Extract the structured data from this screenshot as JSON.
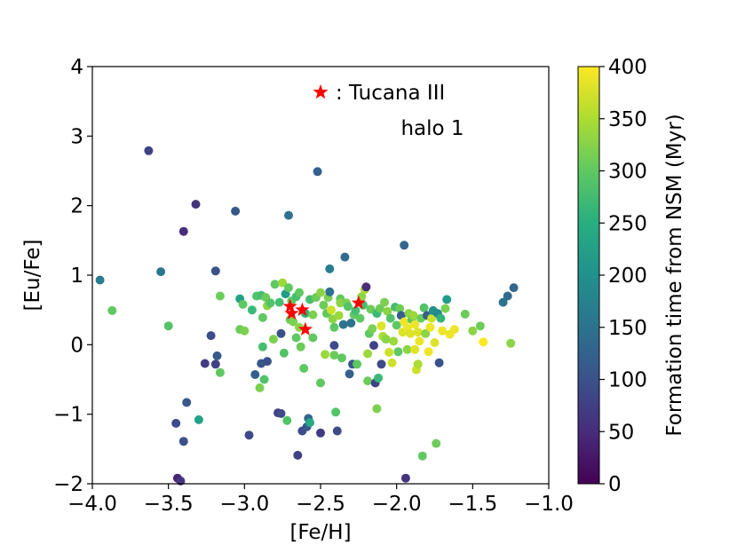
{
  "chart_data": {
    "type": "scatter",
    "xlabel": "[Fe/H]",
    "ylabel": "[Eu/Fe]",
    "xlim": [
      -4.0,
      -1.0
    ],
    "ylim": [
      -2,
      4
    ],
    "xticks": [
      "−4.0",
      "−3.5",
      "−3.0",
      "−2.5",
      "−2.0",
      "−1.5",
      "−1.0"
    ],
    "yticks": [
      "−2",
      "−1",
      "0",
      "1",
      "2",
      "3",
      "4"
    ],
    "grid": false,
    "colormap": "viridis",
    "legend": {
      "label": ": Tucana III",
      "marker": "star",
      "color": "#ff0000",
      "placement": "top-center"
    },
    "annotation": "halo 1",
    "colorbar": {
      "label": "Formation time from NSM (Myr)",
      "range": [
        0,
        400
      ],
      "ticks": [
        "0",
        "50",
        "100",
        "150",
        "200",
        "250",
        "300",
        "350",
        "400"
      ]
    },
    "tucana_iii": [
      {
        "x": -2.7,
        "y": 0.55
      },
      {
        "x": -2.69,
        "y": 0.45
      },
      {
        "x": -2.62,
        "y": 0.5
      },
      {
        "x": -2.6,
        "y": 0.22
      },
      {
        "x": -2.25,
        "y": 0.6
      }
    ],
    "points": [
      {
        "x": -3.95,
        "y": 0.93,
        "c": 170
      },
      {
        "x": -3.87,
        "y": 0.49,
        "c": 300
      },
      {
        "x": -3.63,
        "y": 2.79,
        "c": 80
      },
      {
        "x": -3.55,
        "y": 1.05,
        "c": 160
      },
      {
        "x": -3.5,
        "y": 0.27,
        "c": 290
      },
      {
        "x": -3.45,
        "y": -1.13,
        "c": 90
      },
      {
        "x": -3.44,
        "y": -1.92,
        "c": 40
      },
      {
        "x": -3.42,
        "y": -1.96,
        "c": 60
      },
      {
        "x": -3.4,
        "y": -1.39,
        "c": 100
      },
      {
        "x": -3.4,
        "y": 1.63,
        "c": 50
      },
      {
        "x": -3.38,
        "y": -0.83,
        "c": 110
      },
      {
        "x": -3.32,
        "y": 2.02,
        "c": 60
      },
      {
        "x": -3.3,
        "y": -1.08,
        "c": 230
      },
      {
        "x": -3.26,
        "y": -0.27,
        "c": 70
      },
      {
        "x": -3.22,
        "y": 0.13,
        "c": 90
      },
      {
        "x": -3.19,
        "y": 1.06,
        "c": 100
      },
      {
        "x": -3.19,
        "y": -0.28,
        "c": 80
      },
      {
        "x": -3.18,
        "y": -0.16,
        "c": 110
      },
      {
        "x": -3.16,
        "y": 0.7,
        "c": 310
      },
      {
        "x": -3.16,
        "y": -0.4,
        "c": 300
      },
      {
        "x": -3.06,
        "y": 1.92,
        "c": 110
      },
      {
        "x": -3.03,
        "y": 0.66,
        "c": 230
      },
      {
        "x": -3.03,
        "y": 0.22,
        "c": 310
      },
      {
        "x": -3.01,
        "y": 0.58,
        "c": 300
      },
      {
        "x": -3.0,
        "y": 0.2,
        "c": 320
      },
      {
        "x": -2.97,
        "y": -1.3,
        "c": 90
      },
      {
        "x": -2.95,
        "y": 0.5,
        "c": 270
      },
      {
        "x": -2.93,
        "y": -0.43,
        "c": 120
      },
      {
        "x": -2.92,
        "y": 0.7,
        "c": 290
      },
      {
        "x": -2.9,
        "y": -0.62,
        "c": 320
      },
      {
        "x": -2.89,
        "y": 0.71,
        "c": 280
      },
      {
        "x": -2.89,
        "y": -0.27,
        "c": 110
      },
      {
        "x": -2.88,
        "y": 0.39,
        "c": 300
      },
      {
        "x": -2.88,
        "y": -0.03,
        "c": 280
      },
      {
        "x": -2.87,
        "y": -0.5,
        "c": 290
      },
      {
        "x": -2.86,
        "y": 0.68,
        "c": 310
      },
      {
        "x": -2.85,
        "y": -0.24,
        "c": 100
      },
      {
        "x": -2.85,
        "y": 0.56,
        "c": 330
      },
      {
        "x": -2.83,
        "y": 0.6,
        "c": 290
      },
      {
        "x": -2.81,
        "y": 0.08,
        "c": 320
      },
      {
        "x": -2.8,
        "y": 0.87,
        "c": 300
      },
      {
        "x": -2.78,
        "y": -0.98,
        "c": 80
      },
      {
        "x": -2.77,
        "y": 0.61,
        "c": 280
      },
      {
        "x": -2.76,
        "y": 0.16,
        "c": 100
      },
      {
        "x": -2.76,
        "y": -0.99,
        "c": 90
      },
      {
        "x": -2.75,
        "y": 0.89,
        "c": 340
      },
      {
        "x": -2.74,
        "y": -0.12,
        "c": 290
      },
      {
        "x": -2.73,
        "y": 0.73,
        "c": 220
      },
      {
        "x": -2.72,
        "y": -1.09,
        "c": 290
      },
      {
        "x": -2.71,
        "y": 0.82,
        "c": 300
      },
      {
        "x": -2.71,
        "y": 1.86,
        "c": 150
      },
      {
        "x": -2.7,
        "y": 0.36,
        "c": 310
      },
      {
        "x": -2.69,
        "y": 0.63,
        "c": 300
      },
      {
        "x": -2.68,
        "y": 0.33,
        "c": 320
      },
      {
        "x": -2.66,
        "y": 0.1,
        "c": 300
      },
      {
        "x": -2.66,
        "y": 0.69,
        "c": 280
      },
      {
        "x": -2.65,
        "y": -1.59,
        "c": 80
      },
      {
        "x": -2.64,
        "y": 0.25,
        "c": 330
      },
      {
        "x": -2.64,
        "y": 0.75,
        "c": 300
      },
      {
        "x": -2.63,
        "y": -0.03,
        "c": 310
      },
      {
        "x": -2.62,
        "y": -1.24,
        "c": 90
      },
      {
        "x": -2.61,
        "y": -0.34,
        "c": 300
      },
      {
        "x": -2.6,
        "y": 0.45,
        "c": 260
      },
      {
        "x": -2.59,
        "y": -1.18,
        "c": 110
      },
      {
        "x": -2.58,
        "y": -1.06,
        "c": 130
      },
      {
        "x": -2.57,
        "y": -1.12,
        "c": 240
      },
      {
        "x": -2.57,
        "y": 0.65,
        "c": 280
      },
      {
        "x": -2.55,
        "y": 0.1,
        "c": 300
      },
      {
        "x": -2.55,
        "y": 0.43,
        "c": 320
      },
      {
        "x": -2.53,
        "y": 0.68,
        "c": 310
      },
      {
        "x": -2.52,
        "y": 2.49,
        "c": 120
      },
      {
        "x": -2.5,
        "y": -0.55,
        "c": 300
      },
      {
        "x": -2.5,
        "y": -1.27,
        "c": 70
      },
      {
        "x": -2.5,
        "y": 0.75,
        "c": 330
      },
      {
        "x": -2.48,
        "y": 0.57,
        "c": 310
      },
      {
        "x": -2.47,
        "y": -0.14,
        "c": 340
      },
      {
        "x": -2.46,
        "y": 0.45,
        "c": 300
      },
      {
        "x": -2.45,
        "y": 0.68,
        "c": 320
      },
      {
        "x": -2.44,
        "y": 0.76,
        "c": 150
      },
      {
        "x": -2.44,
        "y": 1.09,
        "c": 170
      },
      {
        "x": -2.43,
        "y": 0.5,
        "c": 370
      },
      {
        "x": -2.42,
        "y": 0.37,
        "c": 330
      },
      {
        "x": -2.41,
        "y": 0.25,
        "c": 300
      },
      {
        "x": -2.41,
        "y": -0.01,
        "c": 90
      },
      {
        "x": -2.41,
        "y": -0.15,
        "c": 310
      },
      {
        "x": -2.4,
        "y": -0.97,
        "c": 290
      },
      {
        "x": -2.39,
        "y": -1.24,
        "c": 90
      },
      {
        "x": -2.38,
        "y": 0.42,
        "c": 340
      },
      {
        "x": -2.37,
        "y": 0.66,
        "c": 300
      },
      {
        "x": -2.37,
        "y": 0.6,
        "c": 330
      },
      {
        "x": -2.36,
        "y": -0.19,
        "c": 300
      },
      {
        "x": -2.35,
        "y": 0.29,
        "c": 150
      },
      {
        "x": -2.34,
        "y": 1.26,
        "c": 140
      },
      {
        "x": -2.33,
        "y": 0.6,
        "c": 320
      },
      {
        "x": -2.32,
        "y": 0.55,
        "c": 290
      },
      {
        "x": -2.31,
        "y": -0.42,
        "c": 120
      },
      {
        "x": -2.3,
        "y": 0.31,
        "c": 150
      },
      {
        "x": -2.29,
        "y": -0.28,
        "c": 110
      },
      {
        "x": -2.28,
        "y": 0.43,
        "c": 300
      },
      {
        "x": -2.27,
        "y": 0.49,
        "c": 280
      },
      {
        "x": -2.26,
        "y": -0.28,
        "c": 300
      },
      {
        "x": -2.24,
        "y": 0.38,
        "c": 300
      },
      {
        "x": -2.23,
        "y": 0.69,
        "c": 330
      },
      {
        "x": -2.22,
        "y": 0.57,
        "c": 280
      },
      {
        "x": -2.21,
        "y": 0.79,
        "c": 350
      },
      {
        "x": -2.2,
        "y": 0.83,
        "c": 50
      },
      {
        "x": -2.19,
        "y": -0.52,
        "c": 310
      },
      {
        "x": -2.19,
        "y": -0.13,
        "c": 340
      },
      {
        "x": -2.18,
        "y": 0.16,
        "c": 300
      },
      {
        "x": -2.17,
        "y": 0.51,
        "c": 310
      },
      {
        "x": -2.16,
        "y": 0.23,
        "c": 320
      },
      {
        "x": -2.15,
        "y": -0.01,
        "c": 80
      },
      {
        "x": -2.14,
        "y": -0.55,
        "c": 80
      },
      {
        "x": -2.13,
        "y": -0.92,
        "c": 320
      },
      {
        "x": -2.13,
        "y": 0.45,
        "c": 270
      },
      {
        "x": -2.12,
        "y": -0.48,
        "c": 270
      },
      {
        "x": -2.11,
        "y": 0.52,
        "c": 310
      },
      {
        "x": -2.1,
        "y": -0.28,
        "c": 90
      },
      {
        "x": -2.1,
        "y": 0.27,
        "c": 380
      },
      {
        "x": -2.09,
        "y": 0.12,
        "c": 350
      },
      {
        "x": -2.08,
        "y": 0.61,
        "c": 320
      },
      {
        "x": -2.07,
        "y": 0.08,
        "c": 330
      },
      {
        "x": -2.06,
        "y": 0.48,
        "c": 330
      },
      {
        "x": -2.05,
        "y": -0.11,
        "c": 370
      },
      {
        "x": -2.04,
        "y": 0.38,
        "c": 290
      },
      {
        "x": -2.03,
        "y": -0.26,
        "c": 370
      },
      {
        "x": -2.02,
        "y": 0.05,
        "c": 340
      },
      {
        "x": -2.01,
        "y": 0.54,
        "c": 280
      },
      {
        "x": -2.0,
        "y": 0.28,
        "c": 300
      },
      {
        "x": -1.99,
        "y": -0.1,
        "c": 300
      },
      {
        "x": -1.98,
        "y": 0.52,
        "c": 310
      },
      {
        "x": -1.97,
        "y": 0.42,
        "c": 120
      },
      {
        "x": -1.96,
        "y": 0.18,
        "c": 380
      },
      {
        "x": -1.95,
        "y": 1.43,
        "c": 130
      },
      {
        "x": -1.95,
        "y": 0.33,
        "c": 390
      },
      {
        "x": -1.94,
        "y": -1.92,
        "c": 60
      },
      {
        "x": -1.93,
        "y": -0.07,
        "c": 330
      },
      {
        "x": -1.93,
        "y": 0.24,
        "c": 390
      },
      {
        "x": -1.92,
        "y": 0.45,
        "c": 330
      },
      {
        "x": -1.91,
        "y": 0.16,
        "c": 380
      },
      {
        "x": -1.9,
        "y": 0.36,
        "c": 300
      },
      {
        "x": -1.89,
        "y": 0.42,
        "c": 340
      },
      {
        "x": -1.88,
        "y": 0.29,
        "c": 390
      },
      {
        "x": -1.88,
        "y": -0.07,
        "c": 380
      },
      {
        "x": -1.87,
        "y": -0.36,
        "c": 370
      },
      {
        "x": -1.86,
        "y": -0.28,
        "c": 350
      },
      {
        "x": -1.86,
        "y": 0.18,
        "c": 380
      },
      {
        "x": -1.85,
        "y": 0.05,
        "c": 390
      },
      {
        "x": -1.84,
        "y": 0.38,
        "c": 310
      },
      {
        "x": -1.83,
        "y": -1.6,
        "c": 300
      },
      {
        "x": -1.82,
        "y": 0.53,
        "c": 290
      },
      {
        "x": -1.81,
        "y": 0.16,
        "c": 330
      },
      {
        "x": -1.8,
        "y": 0.42,
        "c": 120
      },
      {
        "x": -1.79,
        "y": -0.1,
        "c": 390
      },
      {
        "x": -1.78,
        "y": 0.25,
        "c": 390
      },
      {
        "x": -1.77,
        "y": 0.38,
        "c": 370
      },
      {
        "x": -1.76,
        "y": 0.49,
        "c": 200
      },
      {
        "x": -1.75,
        "y": 0.03,
        "c": 380
      },
      {
        "x": -1.74,
        "y": -1.42,
        "c": 310
      },
      {
        "x": -1.73,
        "y": 0.45,
        "c": 190
      },
      {
        "x": -1.72,
        "y": -0.26,
        "c": 100
      },
      {
        "x": -1.71,
        "y": 0.38,
        "c": 260
      },
      {
        "x": -1.7,
        "y": 0.2,
        "c": 390
      },
      {
        "x": -1.68,
        "y": 0.52,
        "c": 320
      },
      {
        "x": -1.67,
        "y": 0.65,
        "c": 220
      },
      {
        "x": -1.65,
        "y": 0.15,
        "c": 390
      },
      {
        "x": -1.62,
        "y": 0.22,
        "c": 390
      },
      {
        "x": -1.55,
        "y": 0.44,
        "c": 310
      },
      {
        "x": -1.5,
        "y": 0.2,
        "c": 330
      },
      {
        "x": -1.45,
        "y": 0.27,
        "c": 310
      },
      {
        "x": -1.43,
        "y": 0.04,
        "c": 400
      },
      {
        "x": -1.3,
        "y": 0.61,
        "c": 150
      },
      {
        "x": -1.27,
        "y": 0.7,
        "c": 140
      },
      {
        "x": -1.25,
        "y": 0.02,
        "c": 330
      },
      {
        "x": -1.23,
        "y": 0.82,
        "c": 130
      }
    ]
  }
}
